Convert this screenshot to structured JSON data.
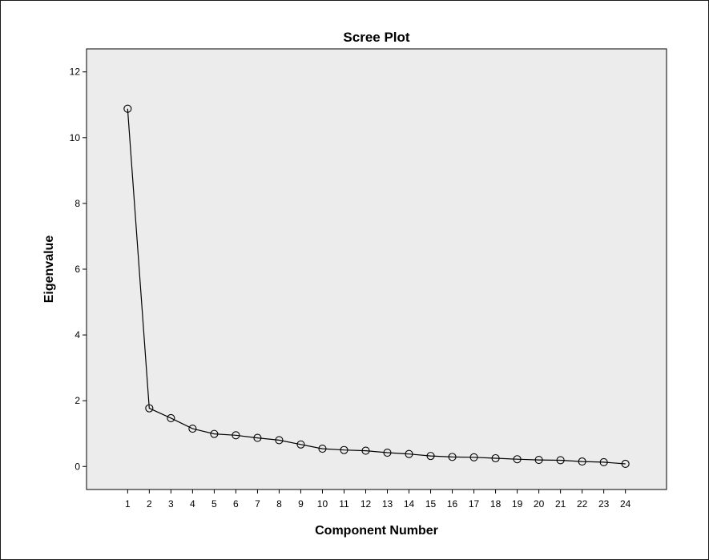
{
  "chart_data": {
    "type": "line",
    "title": "Scree Plot",
    "xlabel": "Component Number",
    "ylabel": "Eigenvalue",
    "x": [
      1,
      2,
      3,
      4,
      5,
      6,
      7,
      8,
      9,
      10,
      11,
      12,
      13,
      14,
      15,
      16,
      17,
      18,
      19,
      20,
      21,
      22,
      23,
      24
    ],
    "series": [
      {
        "values": [
          10.88,
          1.77,
          1.47,
          1.15,
          0.99,
          0.95,
          0.87,
          0.8,
          0.67,
          0.54,
          0.5,
          0.48,
          0.42,
          0.38,
          0.32,
          0.29,
          0.28,
          0.25,
          0.22,
          0.2,
          0.19,
          0.15,
          0.13,
          0.08
        ]
      }
    ],
    "xticks": [
      "1",
      "2",
      "3",
      "4",
      "5",
      "6",
      "7",
      "8",
      "9",
      "10",
      "11",
      "12",
      "13",
      "14",
      "15",
      "16",
      "17",
      "18",
      "19",
      "20",
      "21",
      "22",
      "23",
      "24"
    ],
    "yticks": [
      "0",
      "2",
      "4",
      "6",
      "8",
      "10",
      "12"
    ],
    "ylim": [
      -0.7,
      12.7
    ],
    "xlim": [
      -0.9,
      25.9
    ],
    "grid": false,
    "marker": "open-circle",
    "colors": {
      "plot_background": "#ececec",
      "line": "#000000",
      "frame": "#000000"
    }
  }
}
